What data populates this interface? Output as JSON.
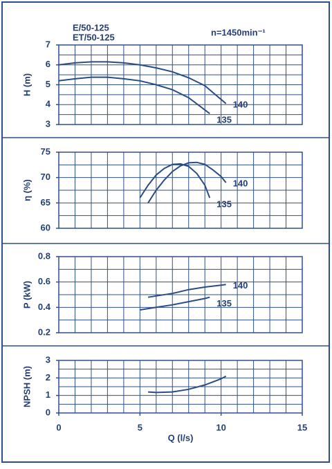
{
  "chart_data": [
    {
      "type": "line",
      "annotations": [
        "E/50-125",
        "ET/50-125",
        "n=1450min⁻¹"
      ],
      "ylabel": "H (m)",
      "xlim": [
        0,
        15
      ],
      "ylim": [
        3,
        7
      ],
      "yticks": [
        3,
        4,
        5,
        6,
        7
      ],
      "grid": true,
      "color": "#2b4b84",
      "series": [
        {
          "name": "140",
          "x": [
            0,
            1,
            2,
            3,
            4,
            5,
            6,
            7,
            8,
            9,
            10.3
          ],
          "values": [
            6.0,
            6.1,
            6.15,
            6.15,
            6.1,
            6.0,
            5.85,
            5.65,
            5.35,
            4.95,
            4.05
          ]
        },
        {
          "name": "135",
          "x": [
            0,
            1,
            2,
            3,
            4,
            5,
            6,
            7,
            8,
            9.3
          ],
          "values": [
            5.2,
            5.3,
            5.38,
            5.38,
            5.3,
            5.2,
            5.0,
            4.75,
            4.35,
            3.55
          ]
        }
      ]
    },
    {
      "type": "line",
      "ylabel": "η (%)",
      "xlim": [
        0,
        15
      ],
      "ylim": [
        60,
        75
      ],
      "yticks": [
        60,
        65,
        70,
        75
      ],
      "grid": true,
      "color": "#2b4b84",
      "series": [
        {
          "name": "140",
          "x": [
            5.5,
            6,
            6.5,
            7,
            7.5,
            8,
            8.5,
            9,
            9.5,
            10,
            10.3
          ],
          "values": [
            65,
            67.5,
            69.5,
            71.2,
            72.3,
            72.9,
            73,
            72.6,
            71.5,
            70.2,
            69
          ]
        },
        {
          "name": "135",
          "x": [
            5,
            5.5,
            6,
            6.5,
            7,
            7.5,
            8,
            8.5,
            9,
            9.3
          ],
          "values": [
            66,
            68.5,
            70.5,
            71.8,
            72.6,
            72.7,
            72.2,
            70.8,
            68.5,
            66
          ]
        }
      ]
    },
    {
      "type": "line",
      "ylabel": "P (kW)",
      "xlim": [
        0,
        15
      ],
      "ylim": [
        0.2,
        0.8
      ],
      "yticks": [
        0.2,
        0.4,
        0.6,
        0.8
      ],
      "grid": true,
      "color": "#2b4b84",
      "series": [
        {
          "name": "140",
          "x": [
            5.5,
            6,
            7,
            8,
            9,
            10,
            10.3
          ],
          "values": [
            0.48,
            0.49,
            0.51,
            0.54,
            0.56,
            0.575,
            0.58
          ]
        },
        {
          "name": "135",
          "x": [
            5,
            6,
            7,
            8,
            9,
            9.3
          ],
          "values": [
            0.38,
            0.4,
            0.42,
            0.445,
            0.47,
            0.48
          ]
        }
      ]
    },
    {
      "type": "line",
      "ylabel": "NPSH (m)",
      "xlabel": "Q (l/s)",
      "xlim": [
        0,
        15
      ],
      "xticks": [
        0,
        5,
        10,
        15
      ],
      "ylim": [
        0,
        3
      ],
      "yticks": [
        0,
        1,
        2,
        3
      ],
      "grid": true,
      "color": "#2b4b84",
      "series": [
        {
          "x": [
            5.5,
            6,
            7,
            8,
            9,
            10,
            10.3
          ],
          "values": [
            1.2,
            1.17,
            1.2,
            1.35,
            1.6,
            1.95,
            2.1
          ]
        }
      ]
    }
  ]
}
